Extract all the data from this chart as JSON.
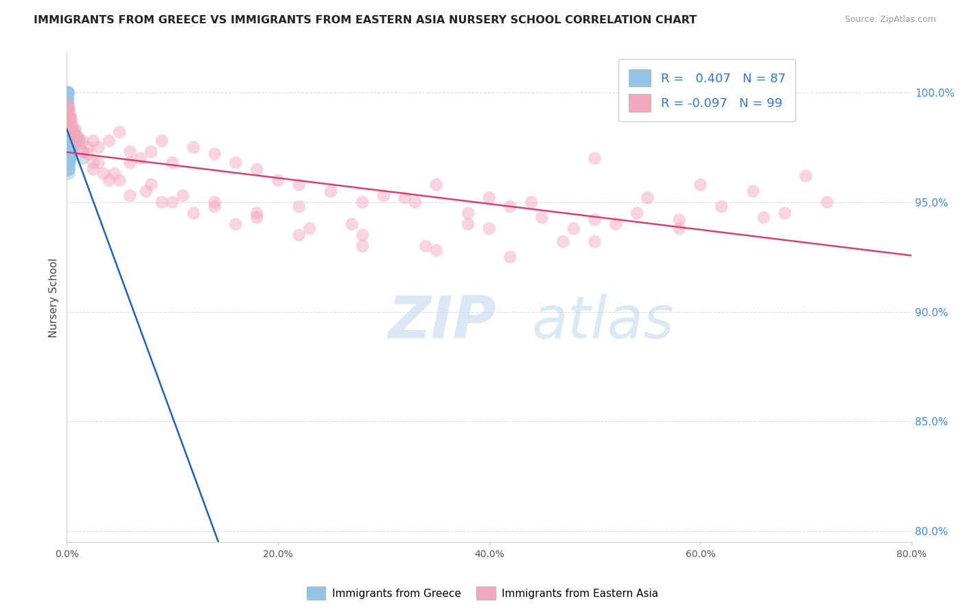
{
  "title": "IMMIGRANTS FROM GREECE VS IMMIGRANTS FROM EASTERN ASIA NURSERY SCHOOL CORRELATION CHART",
  "source": "Source: ZipAtlas.com",
  "ylabel": "Nursery School",
  "ytick_vals": [
    80.0,
    85.0,
    90.0,
    95.0,
    100.0
  ],
  "xlim": [
    0.0,
    80.0
  ],
  "ylim": [
    79.5,
    101.8
  ],
  "R_blue": 0.407,
  "N_blue": 87,
  "R_pink": -0.097,
  "N_pink": 99,
  "blue_color": "#92C5E8",
  "pink_color": "#F4A8BC",
  "blue_line_color": "#2060B0",
  "pink_line_color": "#D84070",
  "blue_scatter_x": [
    0.05,
    0.08,
    0.1,
    0.12,
    0.15,
    0.18,
    0.05,
    0.07,
    0.1,
    0.12,
    0.05,
    0.08,
    0.1,
    0.05,
    0.08,
    0.12,
    0.06,
    0.09,
    0.05,
    0.07,
    0.1,
    0.05,
    0.08,
    0.12,
    0.06,
    0.1,
    0.14,
    0.05,
    0.07,
    0.08,
    0.1,
    0.12,
    0.15,
    0.18,
    0.2,
    0.05,
    0.07,
    0.09,
    0.06,
    0.08,
    0.1,
    0.12,
    0.15,
    0.18,
    0.22,
    0.25,
    0.3,
    0.4,
    0.5,
    0.05,
    0.06,
    0.08,
    0.09,
    0.11,
    0.13,
    0.16,
    0.2,
    0.28,
    0.06,
    0.08,
    0.1,
    0.14,
    0.18,
    0.22,
    0.28,
    0.32,
    0.4,
    0.05,
    0.08,
    0.1,
    0.14,
    0.18,
    0.22,
    0.3,
    0.45,
    0.06,
    0.1,
    0.14,
    0.18,
    0.25,
    0.35,
    0.5,
    0.6,
    0.8,
    1.0,
    1.2,
    1.5
  ],
  "blue_scatter_y": [
    100.0,
    100.0,
    100.0,
    100.0,
    100.0,
    100.0,
    99.7,
    99.7,
    99.7,
    99.7,
    99.5,
    99.5,
    99.5,
    99.3,
    99.3,
    99.3,
    99.0,
    99.0,
    98.8,
    98.8,
    98.5,
    98.3,
    98.3,
    98.3,
    98.0,
    98.0,
    98.0,
    97.8,
    97.8,
    97.5,
    97.5,
    97.5,
    97.3,
    97.3,
    97.0,
    99.0,
    98.8,
    98.5,
    98.3,
    98.0,
    97.8,
    97.5,
    97.3,
    97.0,
    96.8,
    96.5,
    97.0,
    97.5,
    97.8,
    99.0,
    98.8,
    98.5,
    98.3,
    98.0,
    97.8,
    97.5,
    97.8,
    97.5,
    98.8,
    98.5,
    98.3,
    98.0,
    97.8,
    97.5,
    97.3,
    97.0,
    97.5,
    97.8,
    97.5,
    97.3,
    97.0,
    96.8,
    96.5,
    96.8,
    97.3,
    97.0,
    96.8,
    96.5,
    96.3,
    96.8,
    97.0,
    97.3,
    97.5,
    97.8,
    98.0,
    97.8,
    97.0
  ],
  "pink_scatter_x": [
    0.1,
    0.2,
    0.3,
    0.4,
    0.5,
    0.8,
    1.0,
    1.5,
    2.0,
    2.5,
    3.0,
    4.0,
    5.0,
    6.0,
    7.0,
    8.0,
    9.0,
    10.0,
    12.0,
    14.0,
    16.0,
    18.0,
    20.0,
    22.0,
    25.0,
    28.0,
    30.0,
    33.0,
    35.0,
    38.0,
    40.0,
    42.0,
    45.0,
    48.0,
    50.0,
    52.0,
    55.0,
    58.0,
    60.0,
    62.0,
    65.0,
    68.0,
    70.0,
    0.15,
    0.3,
    0.5,
    0.8,
    1.2,
    2.0,
    3.0,
    4.5,
    6.0,
    8.0,
    11.0,
    14.0,
    18.0,
    22.0,
    27.0,
    32.0,
    38.0,
    44.0,
    50.0,
    0.2,
    0.4,
    0.7,
    1.0,
    1.5,
    2.5,
    3.5,
    5.0,
    7.5,
    10.0,
    14.0,
    18.0,
    23.0,
    28.0,
    34.0,
    40.0,
    47.0,
    54.0,
    0.25,
    0.5,
    0.9,
    1.5,
    2.5,
    4.0,
    6.0,
    9.0,
    12.0,
    16.0,
    22.0,
    28.0,
    35.0,
    42.0,
    50.0,
    58.0,
    66.0,
    72.0,
    0.3
  ],
  "pink_scatter_y": [
    99.5,
    99.3,
    99.0,
    98.8,
    98.5,
    98.3,
    98.0,
    97.8,
    97.5,
    97.8,
    97.5,
    97.8,
    98.2,
    97.3,
    97.0,
    97.3,
    97.8,
    96.8,
    97.5,
    97.2,
    96.8,
    96.5,
    96.0,
    95.8,
    95.5,
    95.0,
    95.3,
    95.0,
    95.8,
    94.5,
    95.2,
    94.8,
    94.3,
    93.8,
    97.0,
    94.0,
    95.2,
    94.2,
    95.8,
    94.8,
    95.5,
    94.5,
    96.2,
    99.0,
    98.8,
    98.5,
    98.0,
    97.8,
    97.2,
    96.8,
    96.3,
    96.8,
    95.8,
    95.3,
    95.0,
    94.5,
    94.8,
    94.0,
    95.2,
    94.0,
    95.0,
    94.2,
    99.2,
    98.8,
    98.3,
    97.8,
    97.3,
    96.8,
    96.3,
    96.0,
    95.5,
    95.0,
    94.8,
    94.3,
    93.8,
    93.5,
    93.0,
    93.8,
    93.2,
    94.5,
    98.8,
    98.3,
    97.8,
    97.3,
    96.5,
    96.0,
    95.3,
    95.0,
    94.5,
    94.0,
    93.5,
    93.0,
    92.8,
    92.5,
    93.2,
    93.8,
    94.3,
    95.0,
    98.5
  ]
}
